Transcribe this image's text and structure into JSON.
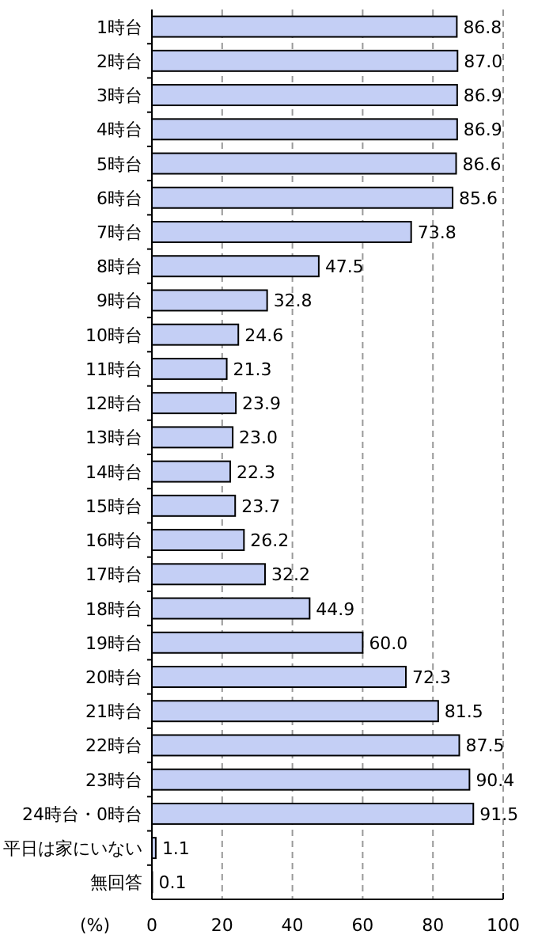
{
  "chart_data": {
    "type": "bar",
    "orientation": "horizontal",
    "xlabel": "(%)",
    "categories": [
      "1時台",
      "2時台",
      "3時台",
      "4時台",
      "5時台",
      "6時台",
      "7時台",
      "8時台",
      "9時台",
      "10時台",
      "11時台",
      "12時台",
      "13時台",
      "14時台",
      "15時台",
      "16時台",
      "17時台",
      "18時台",
      "19時台",
      "20時台",
      "21時台",
      "22時台",
      "23時台",
      "24時台・0時台",
      "平日は家にいない",
      "無回答"
    ],
    "values": [
      86.8,
      87.0,
      86.9,
      86.9,
      86.6,
      85.6,
      73.8,
      47.5,
      32.8,
      24.6,
      21.3,
      23.9,
      23.0,
      22.3,
      23.7,
      26.2,
      32.2,
      44.9,
      60.0,
      72.3,
      81.5,
      87.5,
      90.4,
      91.5,
      1.1,
      0.1
    ],
    "value_labels": [
      "86.8",
      "87.0",
      "86.9",
      "86.9",
      "86.6",
      "85.6",
      "73.8",
      "47.5",
      "32.8",
      "24.6",
      "21.3",
      "23.9",
      "23.0",
      "22.3",
      "23.7",
      "26.2",
      "32.2",
      "44.9",
      "60.0",
      "72.3",
      "81.5",
      "87.5",
      "90.4",
      "91.5",
      "1.1",
      "0.1"
    ],
    "color": "#c4cff5",
    "xlim": [
      0,
      100
    ],
    "xticks": [
      0,
      20,
      40,
      60,
      80,
      100
    ],
    "grid": "x"
  }
}
